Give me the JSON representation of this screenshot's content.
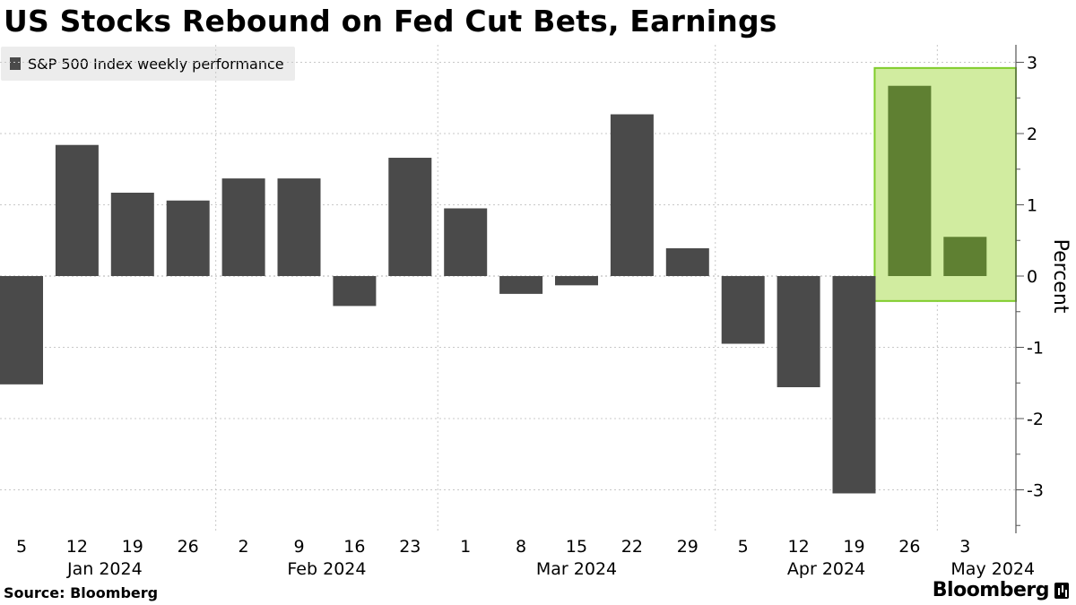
{
  "title": "US Stocks Rebound on Fed Cut Bets, Earnings",
  "source": "Source: Bloomberg",
  "brand": "Bloomberg",
  "colors": {
    "bar": "#4a4a4a",
    "highlight_bar": "#5f8032",
    "highlight_fill": "#d1eca0",
    "highlight_stroke": "#7fcc2a",
    "grid": "#c8c8c8"
  },
  "chart_data": {
    "type": "bar",
    "legend": "S&P 500 Index weekly performance",
    "legend_position": "top-left",
    "ylabel": "Percent",
    "ylim": [
      -3.6,
      3.2
    ],
    "yticks": [
      -3,
      -2,
      -1,
      0,
      1,
      2,
      3
    ],
    "y_axis_side": "right",
    "grid": true,
    "categories": [
      "5",
      "12",
      "19",
      "26",
      "2",
      "9",
      "16",
      "23",
      "1",
      "8",
      "15",
      "22",
      "29",
      "5",
      "12",
      "19",
      "26",
      "3"
    ],
    "values": [
      -1.52,
      1.84,
      1.17,
      1.06,
      1.37,
      1.37,
      -0.42,
      1.66,
      0.95,
      -0.25,
      -0.13,
      2.27,
      0.39,
      -0.95,
      -1.56,
      -3.05,
      2.67,
      0.55
    ],
    "month_labels": [
      {
        "label": "Jan 2024",
        "index": 1.5
      },
      {
        "label": "Feb 2024",
        "index": 5.5
      },
      {
        "label": "Mar 2024",
        "index": 10
      },
      {
        "label": "Apr 2024",
        "index": 14.5
      },
      {
        "label": "May 2024",
        "index": 17.5
      }
    ],
    "highlight": {
      "from_index": 16,
      "to_index": 17,
      "y_range": [
        -0.35,
        2.92
      ]
    }
  }
}
